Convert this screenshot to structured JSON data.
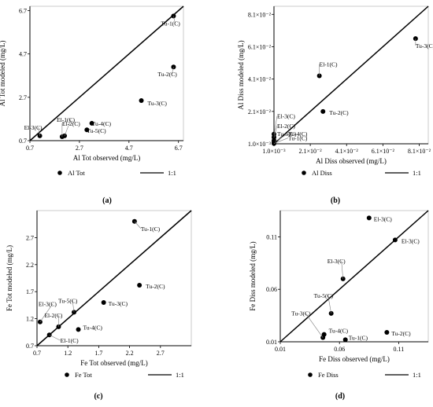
{
  "chart_data": [
    {
      "panel": "(a)",
      "type": "scatter",
      "xlabel": "Al Tot observed (mg/L)",
      "ylabel": "Al Tot modeled (mg/L)",
      "xlim": [
        0.7,
        6.9
      ],
      "ylim": [
        0.7,
        6.9
      ],
      "xticks": [
        "0.7",
        "2.7",
        "4.7",
        "6.7"
      ],
      "yticks": [
        "0.7",
        "2.7",
        "4.7",
        "6.7"
      ],
      "legend": {
        "series": "Al Tot",
        "line": "1:1"
      },
      "points": [
        {
          "label": "Tu-1(C)",
          "x": 6.5,
          "y": 6.45
        },
        {
          "label": "Tu-2(C)",
          "x": 6.5,
          "y": 4.1
        },
        {
          "label": "Tu-3(C)",
          "x": 5.2,
          "y": 2.55
        },
        {
          "label": "Tu-4(C)",
          "x": 3.2,
          "y": 1.5
        },
        {
          "label": "Tu-5(C)",
          "x": 3.0,
          "y": 1.2
        },
        {
          "label": "El-1(C)",
          "x": 2.1,
          "y": 0.92
        },
        {
          "label": "El-2(C)",
          "x": 2.0,
          "y": 0.88
        },
        {
          "label": "El-3(C)",
          "x": 1.1,
          "y": 0.92
        }
      ]
    },
    {
      "panel": "(b)",
      "type": "scatter",
      "xlabel": "Al Diss observed (mg/L)",
      "ylabel": "Al Diss modeled (mg/L)",
      "xlim": [
        0.001,
        0.086
      ],
      "ylim": [
        0.001,
        0.086
      ],
      "xticks": [
        "1.0×10⁻³",
        "2.1×10⁻²",
        "4.1×10⁻²",
        "6.1×10⁻²",
        "8.1×10⁻²"
      ],
      "yticks": [
        "1.0×10⁻³",
        "2.1×10⁻²",
        "4.1×10⁻²",
        "6.1×10⁻²",
        "8.1×10⁻²"
      ],
      "legend": {
        "series": "Al Diss",
        "line": "1:1"
      },
      "points": [
        {
          "label": "Tu-3(C)",
          "x": 0.079,
          "y": 0.066
        },
        {
          "label": "El-1(C)",
          "x": 0.026,
          "y": 0.043
        },
        {
          "label": "Tu-2(C)",
          "x": 0.028,
          "y": 0.021
        },
        {
          "label": "El-3(C)",
          "x": 0.001,
          "y": 0.007
        },
        {
          "label": "El-2(C)",
          "x": 0.001,
          "y": 0.005
        },
        {
          "label": "Tu-5(C)",
          "x": 0.001,
          "y": 0.003
        },
        {
          "label": "Tu-4(C)",
          "x": 0.001,
          "y": 0.002
        },
        {
          "label": "Tu-1(C)",
          "x": 0.001,
          "y": 0.0012
        }
      ]
    },
    {
      "panel": "(c)",
      "type": "scatter",
      "xlabel": "Fe Tot observed (mg/L)",
      "ylabel": "Fe Tot modeled (mg/L)",
      "xlim": [
        0.7,
        3.2
      ],
      "ylim": [
        0.7,
        3.2
      ],
      "xticks": [
        "0.7",
        "1.2",
        "1.7",
        "2.2",
        "2.7"
      ],
      "yticks": [
        "0.7",
        "1.2",
        "1.7",
        "2.2",
        "2.7"
      ],
      "legend": {
        "series": "Fe Tot",
        "line": "1:1"
      },
      "points": [
        {
          "label": "Tu-1(C)",
          "x": 2.28,
          "y": 3.0
        },
        {
          "label": "Tu-2(C)",
          "x": 2.36,
          "y": 1.82
        },
        {
          "label": "Tu-3(C)",
          "x": 1.78,
          "y": 1.5
        },
        {
          "label": "Tu-5(C)",
          "x": 1.3,
          "y": 1.32
        },
        {
          "label": "Tu-4(C)",
          "x": 1.37,
          "y": 1.0
        },
        {
          "label": "El-3(C)",
          "x": 0.75,
          "y": 1.14
        },
        {
          "label": "El-2(C)",
          "x": 1.05,
          "y": 1.05
        },
        {
          "label": "El-1(C)",
          "x": 0.9,
          "y": 0.9
        }
      ]
    },
    {
      "panel": "(d)",
      "type": "scatter",
      "xlabel": "Fe Diss observed (mg/L)",
      "ylabel": "Fe  Diss modeled (mg/L)",
      "xlim": [
        0.01,
        0.135
      ],
      "ylim": [
        0.01,
        0.135
      ],
      "xticks": [
        "0.01",
        "0.06",
        "0.11"
      ],
      "yticks": [
        "0.01",
        "0.06",
        "0.11"
      ],
      "legend": {
        "series": "Fe Diss",
        "line": "1:1"
      },
      "points": [
        {
          "label": "El-3(C)",
          "x": 0.085,
          "y": 0.128
        },
        {
          "label": "El-3(C)",
          "x": 0.107,
          "y": 0.107
        },
        {
          "label": "El-3(C)",
          "x": 0.063,
          "y": 0.07
        },
        {
          "label": "Tu-5(C)",
          "x": 0.053,
          "y": 0.037
        },
        {
          "label": "Tu-3(C)",
          "x": 0.046,
          "y": 0.014
        },
        {
          "label": "Tu-4(C)",
          "x": 0.047,
          "y": 0.017
        },
        {
          "label": "Tu-1(C)",
          "x": 0.065,
          "y": 0.012
        },
        {
          "label": "Tu-2(C)",
          "x": 0.1,
          "y": 0.019
        }
      ]
    }
  ]
}
